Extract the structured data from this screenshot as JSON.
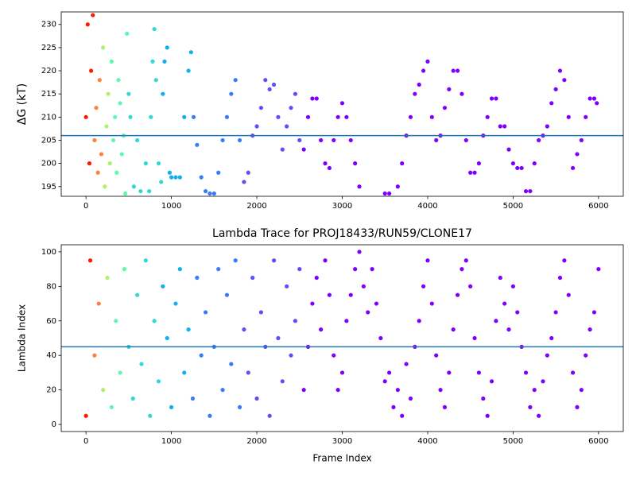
{
  "chart_data": [
    {
      "type": "scatter",
      "ylabel": "ΔG (kT)",
      "xlim": [
        -290,
        6290
      ],
      "ylim": [
        192.9,
        232.7
      ],
      "xticks": [
        0,
        1000,
        2000,
        3000,
        4000,
        5000,
        6000
      ],
      "yticks": [
        195,
        200,
        205,
        210,
        215,
        220,
        225,
        230
      ],
      "hline": 206,
      "hline_color": "#1f77b4",
      "series": [
        {
          "color": "#ff1a00",
          "x": [
            0,
            20,
            40,
            60,
            80
          ],
          "values": [
            210,
            230,
            200,
            220,
            232
          ]
        },
        {
          "color": "#ff7f40",
          "x": [
            100,
            120,
            140,
            160,
            180
          ],
          "values": [
            205,
            212,
            198,
            218,
            202
          ]
        },
        {
          "color": "#b0f070",
          "x": [
            200,
            220,
            240,
            260,
            280
          ],
          "values": [
            225,
            195,
            208,
            215,
            200
          ]
        },
        {
          "color": "#60f8b0",
          "x": [
            300,
            320,
            340,
            360,
            380,
            400,
            420,
            440,
            460,
            480
          ],
          "values": [
            222,
            205,
            210,
            198,
            218,
            213,
            202,
            206,
            193.5,
            228
          ]
        },
        {
          "color": "#30d8d8",
          "x": [
            500,
            520,
            560,
            600,
            640,
            700,
            740,
            760,
            780,
            800,
            820,
            850,
            880
          ],
          "values": [
            215,
            210,
            195,
            205,
            194,
            200,
            194,
            210,
            222,
            229,
            218,
            200,
            196
          ]
        },
        {
          "color": "#10b0ec",
          "x": [
            900,
            920,
            950,
            980,
            1000,
            1050,
            1100,
            1150,
            1200,
            1230
          ],
          "values": [
            215,
            222,
            225,
            198,
            197,
            197,
            197,
            210,
            220,
            224
          ]
        },
        {
          "color": "#3a7cf6",
          "x": [
            1260,
            1300,
            1350,
            1400,
            1450,
            1500,
            1550,
            1600,
            1650,
            1700,
            1750,
            1800
          ],
          "values": [
            210,
            204,
            197,
            194,
            193.5,
            193.5,
            198,
            205,
            210,
            215,
            218,
            205
          ]
        },
        {
          "color": "#5a50fa",
          "x": [
            1850,
            1900,
            1950,
            2000,
            2050,
            2100,
            2150,
            2200,
            2250,
            2300,
            2350,
            2400,
            2450,
            2500
          ],
          "values": [
            196,
            198,
            206,
            208,
            212,
            218,
            216,
            217,
            210,
            203,
            208,
            212,
            215,
            205
          ]
        },
        {
          "color": "#8000ff",
          "x": [
            2550,
            2600,
            2650,
            2700,
            2750,
            2800,
            2850,
            2900,
            2950,
            3000,
            3050,
            3100,
            3150,
            3200,
            3500,
            3550,
            3650,
            3700,
            3750,
            3800,
            3850,
            3900,
            3950,
            4000,
            4050,
            4100,
            4150,
            4200,
            4250,
            4300,
            4350,
            4400,
            4450,
            4500,
            4550,
            4600,
            4650,
            4700,
            4750,
            4800,
            4850,
            4900,
            4950,
            5000,
            5050,
            5100,
            5150,
            5200,
            5250,
            5300,
            5350,
            5400,
            5450,
            5500,
            5550,
            5600,
            5650,
            5700,
            5750,
            5800,
            5850,
            5900,
            5950,
            5980
          ],
          "values": [
            203,
            210,
            214,
            214,
            205,
            200,
            199,
            205,
            210,
            213,
            210,
            205,
            200,
            195,
            193.5,
            193.5,
            195,
            200,
            206,
            210,
            215,
            217,
            220,
            222,
            210,
            205,
            206,
            212,
            216,
            220,
            220,
            215,
            205,
            198,
            198,
            200,
            206,
            210,
            214,
            214,
            208,
            208,
            203,
            200,
            199,
            199,
            194,
            194,
            200,
            205,
            206,
            208,
            213,
            216,
            220,
            218,
            210,
            199,
            202,
            205,
            210,
            214,
            214,
            213
          ]
        }
      ]
    },
    {
      "type": "scatter",
      "title": "Lambda Trace for PROJ18433/RUN59/CLONE17",
      "xlabel": "Frame Index",
      "ylabel": "Lambda Index",
      "xlim": [
        -290,
        6290
      ],
      "ylim": [
        -4.1,
        104.1
      ],
      "xticks": [
        0,
        1000,
        2000,
        3000,
        4000,
        5000,
        6000
      ],
      "yticks": [
        0,
        20,
        40,
        60,
        80,
        100
      ],
      "hline": 45,
      "hline_color": "#1f77b4",
      "series": [
        {
          "color": "#ff1a00",
          "x": [
            0,
            50
          ],
          "values": [
            5,
            95
          ]
        },
        {
          "color": "#ff7f40",
          "x": [
            100,
            150
          ],
          "values": [
            40,
            70
          ]
        },
        {
          "color": "#b0f070",
          "x": [
            200,
            250
          ],
          "values": [
            20,
            85
          ]
        },
        {
          "color": "#60f8b0",
          "x": [
            300,
            350,
            400,
            450
          ],
          "values": [
            10,
            60,
            30,
            90
          ]
        },
        {
          "color": "#30d8d8",
          "x": [
            500,
            550,
            600,
            650,
            700,
            750,
            800,
            850
          ],
          "values": [
            45,
            15,
            75,
            35,
            95,
            5,
            60,
            25
          ]
        },
        {
          "color": "#10b0ec",
          "x": [
            900,
            950,
            1000,
            1050,
            1100,
            1150,
            1200
          ],
          "values": [
            80,
            50,
            10,
            70,
            90,
            30,
            55
          ]
        },
        {
          "color": "#3a7cf6",
          "x": [
            1250,
            1300,
            1350,
            1400,
            1450,
            1500,
            1550,
            1600,
            1650,
            1700,
            1750,
            1800
          ],
          "values": [
            15,
            85,
            40,
            65,
            5,
            45,
            90,
            20,
            75,
            35,
            95,
            10
          ]
        },
        {
          "color": "#5a50fa",
          "x": [
            1850,
            1900,
            1950,
            2000,
            2050,
            2100,
            2150,
            2200,
            2250,
            2300,
            2350,
            2400,
            2450,
            2500
          ],
          "values": [
            55,
            30,
            85,
            15,
            65,
            45,
            5,
            95,
            50,
            25,
            80,
            40,
            60,
            90
          ]
        },
        {
          "color": "#8000ff",
          "x": [
            2550,
            2600,
            2650,
            2700,
            2750,
            2800,
            2850,
            2900,
            2950,
            3000,
            3050,
            3100,
            3150,
            3200,
            3250,
            3300,
            3350,
            3400,
            3450,
            3500,
            3550,
            3600,
            3650,
            3700,
            3750,
            3800,
            3850,
            3900,
            3950,
            4000,
            4050,
            4100,
            4150,
            4200,
            4250,
            4300,
            4350,
            4400,
            4450,
            4500,
            4550,
            4600,
            4650,
            4700,
            4750,
            4800,
            4850,
            4900,
            4950,
            5000,
            5050,
            5100,
            5150,
            5200,
            5250,
            5300,
            5350,
            5400,
            5450,
            5500,
            5550,
            5600,
            5650,
            5700,
            5750,
            5800,
            5850,
            5900,
            5950,
            6000
          ],
          "values": [
            20,
            45,
            70,
            85,
            55,
            95,
            75,
            40,
            20,
            30,
            60,
            75,
            90,
            100,
            80,
            65,
            90,
            70,
            50,
            25,
            30,
            10,
            20,
            5,
            35,
            15,
            45,
            60,
            80,
            95,
            70,
            40,
            20,
            10,
            30,
            55,
            75,
            90,
            95,
            80,
            50,
            30,
            15,
            5,
            25,
            60,
            85,
            70,
            55,
            80,
            65,
            45,
            30,
            10,
            20,
            5,
            25,
            40,
            50,
            65,
            85,
            95,
            75,
            30,
            10,
            20,
            40,
            55,
            65,
            90
          ]
        }
      ]
    }
  ]
}
